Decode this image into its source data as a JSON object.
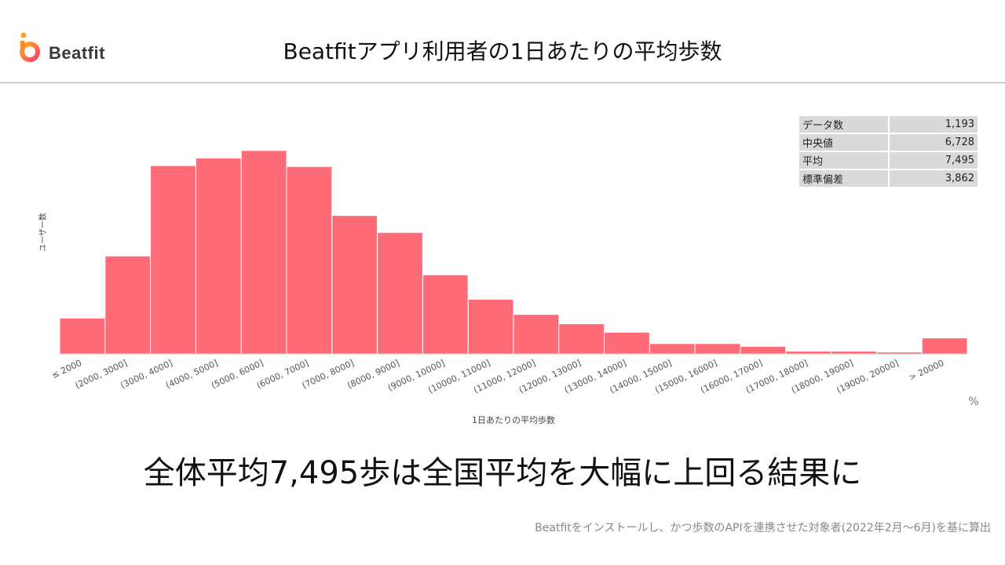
{
  "brand": {
    "name": "Beatfit"
  },
  "title": "Beatfitアプリ利用者の1日あたりの平均歩数",
  "stats": [
    {
      "label": "データ数",
      "value": "1,193"
    },
    {
      "label": "中央値",
      "value": "6,728"
    },
    {
      "label": "平均",
      "value": "7,495"
    },
    {
      "label": "標準偏差",
      "value": "3,862"
    }
  ],
  "chart_data": {
    "type": "bar",
    "xlabel": "1日あたりの平均歩数",
    "ylabel": "ユーザー数",
    "unit_label": "%",
    "categories": [
      "≤ 2000",
      "(2000, 3000]",
      "(3000, 4000]",
      "(4000, 5000]",
      "(5000, 6000]",
      "(6000, 7000]",
      "(7000, 8000]",
      "(8000, 9000]",
      "(9000, 10000]",
      "(10000, 11000]",
      "(11000, 12000]",
      "(12000, 13000]",
      "(13000, 14000]",
      "(14000, 15000]",
      "(15000, 16000]",
      "(16000, 17000]",
      "(17000, 18000]",
      "(18000, 19000]",
      "(19000, 20000]",
      "> 20000"
    ],
    "values": [
      3.8,
      10.4,
      20.0,
      20.8,
      21.6,
      19.9,
      14.7,
      12.9,
      8.4,
      5.8,
      4.2,
      3.2,
      2.3,
      1.1,
      1.1,
      0.8,
      0.3,
      0.3,
      0.2,
      1.7
    ],
    "ylim": [
      0,
      25
    ],
    "bar_color": "#ff6b77",
    "grid": false
  },
  "headline": "全体平均7,495歩は全国平均を大幅に上回る結果に",
  "footnote": "Beatfitをインストールし、かつ歩数のAPIを連携させた対象者(2022年2月〜6月)を基に算出"
}
